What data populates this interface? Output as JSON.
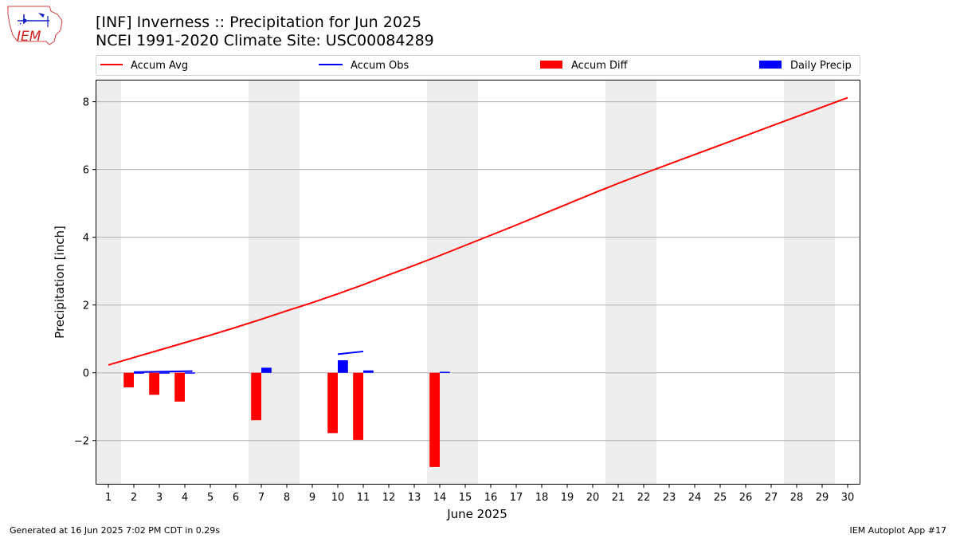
{
  "header": {
    "title_line1": "[INF] Inverness :: Precipitation for Jun 2025",
    "title_line2": "NCEI 1991-2020 Climate Site: USC00084289",
    "logo_text": "IEM"
  },
  "footer": {
    "left": "Generated at 16 Jun 2025 7:02 PM CDT in 0.29s",
    "right": "IEM Autoplot App #17"
  },
  "colors": {
    "accum_avg": "#ff0000",
    "accum_obs": "#0000ff",
    "accum_diff": "#ff0000",
    "daily_precip": "#0000ff",
    "weekend_shade": "#eeeeee",
    "grid": "#b0b0b0"
  },
  "chart_data": {
    "type": "bar",
    "xlabel": "June 2025",
    "ylabel": "Precipitation [inch]",
    "xlim": [
      0.5,
      30.5
    ],
    "ylim": [
      -3.3,
      8.65
    ],
    "x_ticks": [
      1,
      2,
      3,
      4,
      5,
      6,
      7,
      8,
      9,
      10,
      11,
      12,
      13,
      14,
      15,
      16,
      17,
      18,
      19,
      20,
      21,
      22,
      23,
      24,
      25,
      26,
      27,
      28,
      29,
      30
    ],
    "y_ticks": [
      -2,
      0,
      2,
      4,
      6,
      8
    ],
    "y_tick_labels": [
      "−2",
      "0",
      "2",
      "4",
      "6",
      "8"
    ],
    "grid": "horizontal",
    "legend_position": "top",
    "weekend_days": [
      1,
      7,
      8,
      14,
      15,
      21,
      22,
      28,
      29
    ],
    "legend": [
      "Accum Avg",
      "Accum Obs",
      "Accum Diff",
      "Daily Precip"
    ],
    "series": [
      {
        "name": "Accum Avg",
        "type": "line",
        "days": [
          1,
          2,
          3,
          4,
          5,
          6,
          7,
          8,
          9,
          10,
          11,
          12,
          13,
          14,
          15,
          16,
          17,
          18,
          19,
          20,
          21,
          22,
          23,
          24,
          25,
          26,
          27,
          28,
          29,
          30
        ],
        "values": [
          0.23,
          0.45,
          0.67,
          0.89,
          1.11,
          1.34,
          1.58,
          1.83,
          2.07,
          2.33,
          2.6,
          2.89,
          3.17,
          3.46,
          3.76,
          4.06,
          4.36,
          4.67,
          4.98,
          5.29,
          5.59,
          5.88,
          6.16,
          6.44,
          6.72,
          7.0,
          7.28,
          7.56,
          7.84,
          8.12
        ]
      },
      {
        "name": "Accum Obs",
        "type": "segments",
        "segments": [
          {
            "x": [
              2,
              4.3
            ],
            "y": [
              0.02,
              0.05
            ]
          },
          {
            "x": [
              10,
              11
            ],
            "y": [
              0.55,
              0.63
            ]
          }
        ]
      },
      {
        "name": "Accum Diff",
        "type": "bar",
        "days": [
          2,
          3,
          4,
          7,
          10,
          11,
          14
        ],
        "values": [
          -0.43,
          -0.65,
          -0.85,
          -1.4,
          -1.78,
          -1.98,
          -2.78
        ]
      },
      {
        "name": "Daily Precip",
        "type": "bar",
        "days": [
          2,
          3,
          4,
          7,
          10,
          11,
          14
        ],
        "values": [
          0.01,
          0.01,
          0.01,
          0.15,
          0.37,
          0.07,
          0.03
        ]
      }
    ]
  }
}
